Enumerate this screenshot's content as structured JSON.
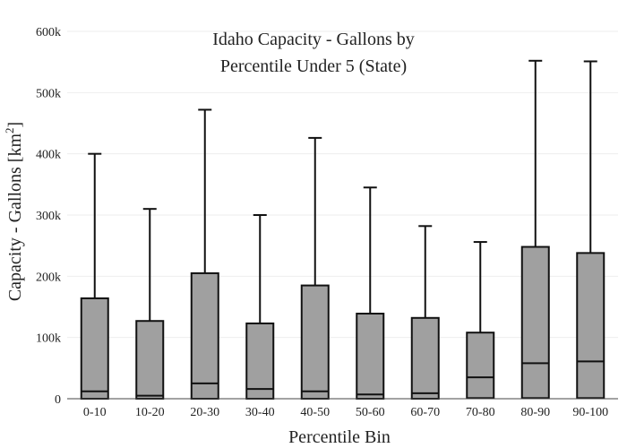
{
  "chart_data": {
    "type": "box",
    "title_lines": [
      "Idaho Capacity - Gallons by",
      "Percentile Under 5 (State)"
    ],
    "xlabel": "Percentile Bin",
    "ylabel": "Capacity - Gallons  [km²]",
    "ylabel_parts": {
      "main": "Capacity - Gallons  [km",
      "sup": "2",
      "close": "]"
    },
    "ylim": [
      0,
      600000
    ],
    "y_ticks": [
      0,
      100000,
      200000,
      300000,
      400000,
      500000,
      600000
    ],
    "y_tick_labels": [
      "0",
      "100k",
      "200k",
      "300k",
      "400k",
      "500k",
      "600k"
    ],
    "grid": true,
    "categories": [
      "0-10",
      "10-20",
      "20-30",
      "30-40",
      "40-50",
      "50-60",
      "60-70",
      "70-80",
      "80-90",
      "90-100"
    ],
    "boxes": [
      {
        "min": 0,
        "q1": 0,
        "median": 12000,
        "q3": 164000,
        "max": 400000
      },
      {
        "min": 0,
        "q1": 0,
        "median": 5000,
        "q3": 127000,
        "max": 310000
      },
      {
        "min": 0,
        "q1": 0,
        "median": 25000,
        "q3": 205000,
        "max": 472000
      },
      {
        "min": 0,
        "q1": 0,
        "median": 16000,
        "q3": 123000,
        "max": 300000
      },
      {
        "min": 0,
        "q1": 0,
        "median": 12000,
        "q3": 185000,
        "max": 426000
      },
      {
        "min": 0,
        "q1": 0,
        "median": 7000,
        "q3": 139000,
        "max": 345000
      },
      {
        "min": 0,
        "q1": 0,
        "median": 9000,
        "q3": 132000,
        "max": 282000
      },
      {
        "min": 0,
        "q1": 1000,
        "median": 35000,
        "q3": 108000,
        "max": 256000
      },
      {
        "min": 0,
        "q1": 1000,
        "median": 58000,
        "q3": 248000,
        "max": 552000
      },
      {
        "min": 0,
        "q1": 1000,
        "median": 61000,
        "q3": 238000,
        "max": 551000
      }
    ]
  }
}
